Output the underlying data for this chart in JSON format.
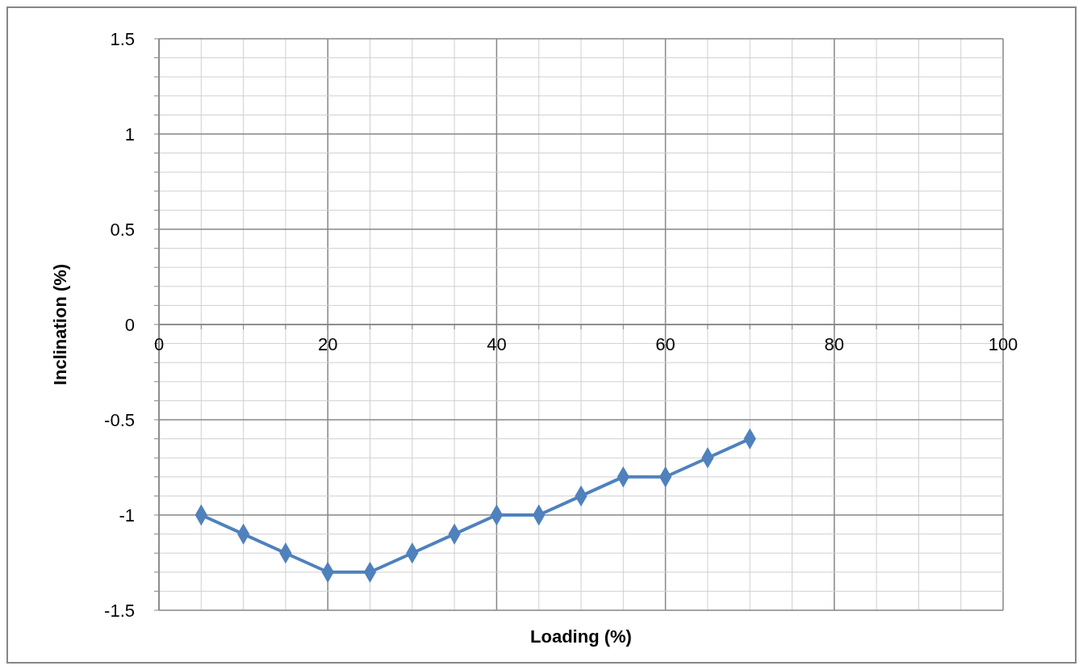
{
  "chart_data": {
    "type": "line",
    "xlabel": "Loading (%)",
    "ylabel": "Inclination (%)",
    "x": [
      5,
      10,
      15,
      20,
      25,
      30,
      35,
      40,
      45,
      50,
      55,
      60,
      65,
      70
    ],
    "series": [
      {
        "color": "#4f81bd",
        "values": [
          -1,
          -1.1,
          -1.2,
          -1.3,
          -1.3,
          -1.2,
          -1.1,
          -1,
          -1,
          -0.9,
          -0.8,
          -0.8,
          -0.7,
          -0.6
        ]
      }
    ],
    "xlim": [
      0,
      100
    ],
    "xticks": [
      0,
      {
        "value": 5,
        "label": null
      },
      {
        "value": 10,
        "label": null
      },
      {
        "value": 15,
        "label": null
      },
      20,
      {
        "value": 25,
        "label": null
      },
      {
        "value": 30,
        "label": null
      },
      {
        "value": 35,
        "label": null
      },
      40,
      {
        "value": 45,
        "label": null
      },
      {
        "value": 50,
        "label": null
      },
      {
        "value": 55,
        "label": null
      },
      60,
      {
        "value": 65,
        "label": null
      },
      {
        "value": 70,
        "label": null
      },
      {
        "value": 75,
        "label": null
      },
      80,
      {
        "value": 85,
        "label": null
      },
      {
        "value": 90,
        "label": null
      },
      {
        "value": 95,
        "label": null
      },
      100
    ],
    "ylim": [
      -1.5,
      1.5
    ],
    "yticks": [
      -1.5,
      {
        "value": -1.4,
        "label": null
      },
      {
        "value": -1.3,
        "label": null
      },
      {
        "value": -1.2,
        "label": null
      },
      {
        "value": -1.1,
        "label": null
      },
      -1,
      {
        "value": -0.9,
        "label": null
      },
      {
        "value": -0.8,
        "label": null
      },
      {
        "value": -0.7,
        "label": null
      },
      {
        "value": -0.6,
        "label": null
      },
      -0.5,
      {
        "value": -0.4,
        "label": null
      },
      {
        "value": -0.3,
        "label": null
      },
      {
        "value": -0.2,
        "label": null
      },
      {
        "value": -0.1,
        "label": null
      },
      0,
      {
        "value": 0.1,
        "label": null
      },
      {
        "value": 0.2,
        "label": null
      },
      {
        "value": 0.3,
        "label": null
      },
      {
        "value": 0.4,
        "label": null
      },
      0.5,
      {
        "value": 0.6,
        "label": null
      },
      {
        "value": 0.7,
        "label": null
      },
      {
        "value": 0.8,
        "label": null
      },
      {
        "value": 0.9,
        "label": null
      },
      1,
      {
        "value": 1.1,
        "label": null
      },
      {
        "value": 1.2,
        "label": null
      },
      {
        "value": 1.3,
        "label": null
      },
      {
        "value": 1.4,
        "label": null
      },
      1.5
    ],
    "grid": true,
    "marker": "diamond",
    "line_style": "solid"
  }
}
